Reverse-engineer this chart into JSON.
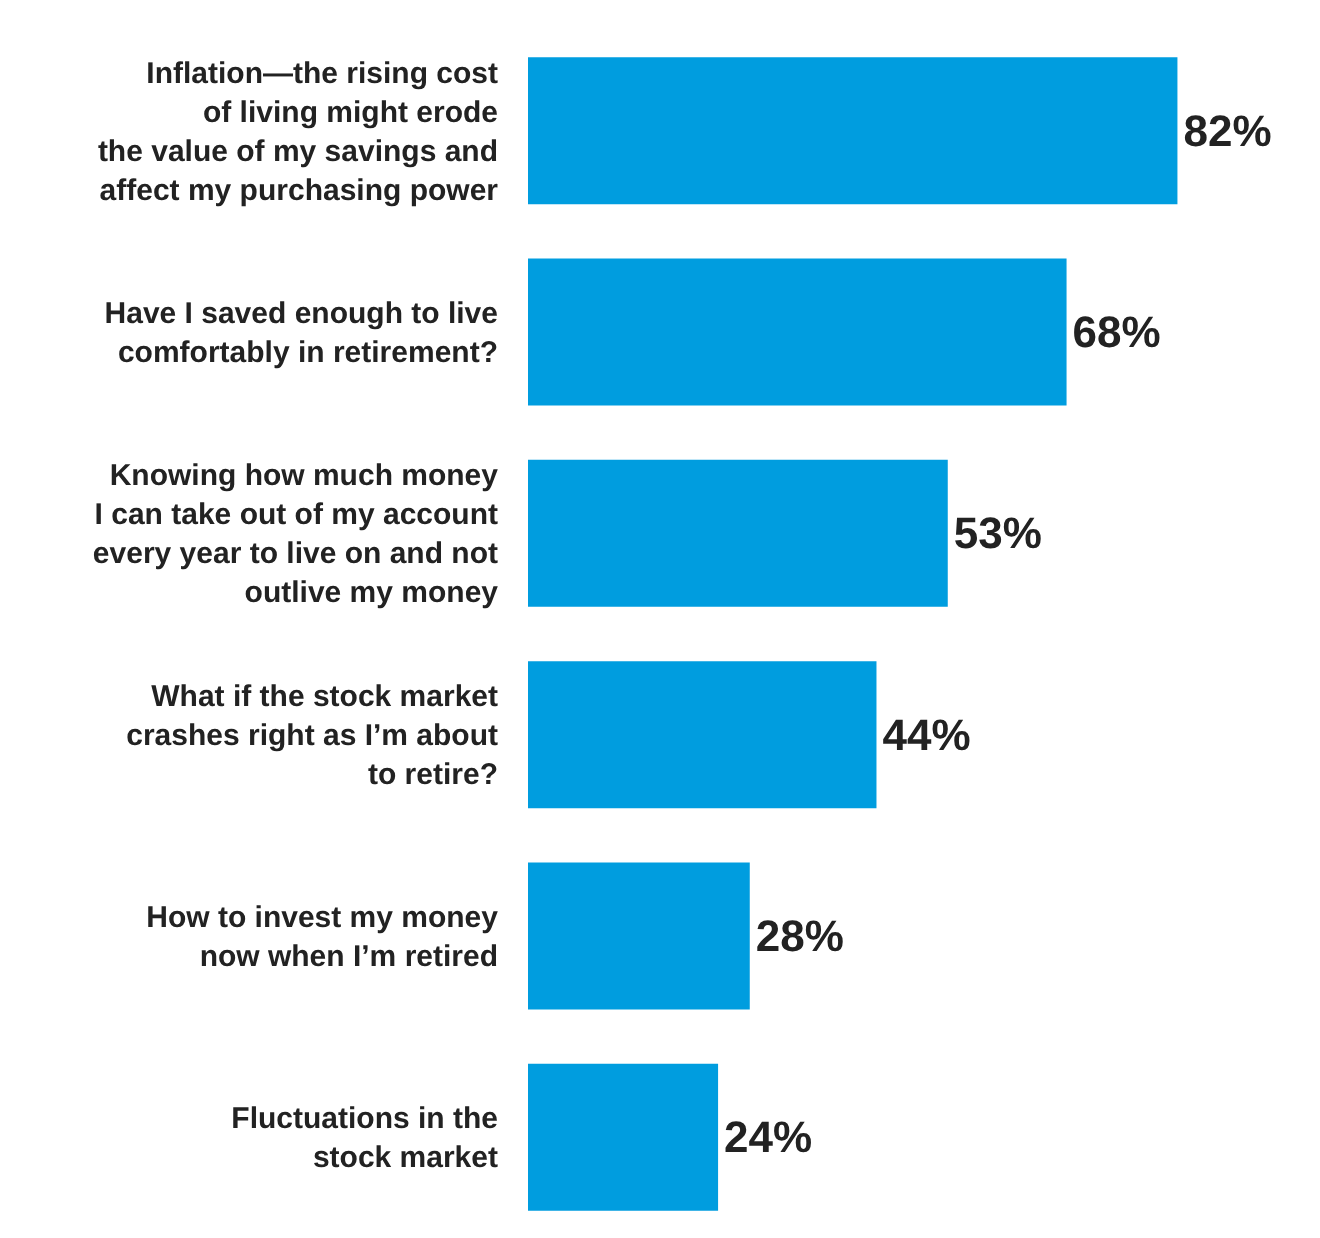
{
  "chart_data": {
    "type": "bar",
    "orientation": "horizontal",
    "categories": [
      "Inflation—the rising cost\nof living might erode\nthe value of my savings and\naffect my purchasing power",
      "Have I saved enough to live\ncomfortably in retirement?",
      "Knowing how much money\nI can take out of my account\nevery year to live on and not\noutlive my money",
      "What if the stock market\ncrashes right as I’m about\nto retire?",
      "How to invest my money\nnow when I’m retired",
      "Fluctuations in the\nstock market"
    ],
    "values": [
      82,
      68,
      53,
      44,
      28,
      24
    ],
    "value_labels": [
      "82%",
      "68%",
      "53%",
      "44%",
      "28%",
      "24%"
    ],
    "color": "#009ddf",
    "xlim": [
      0,
      100
    ]
  }
}
